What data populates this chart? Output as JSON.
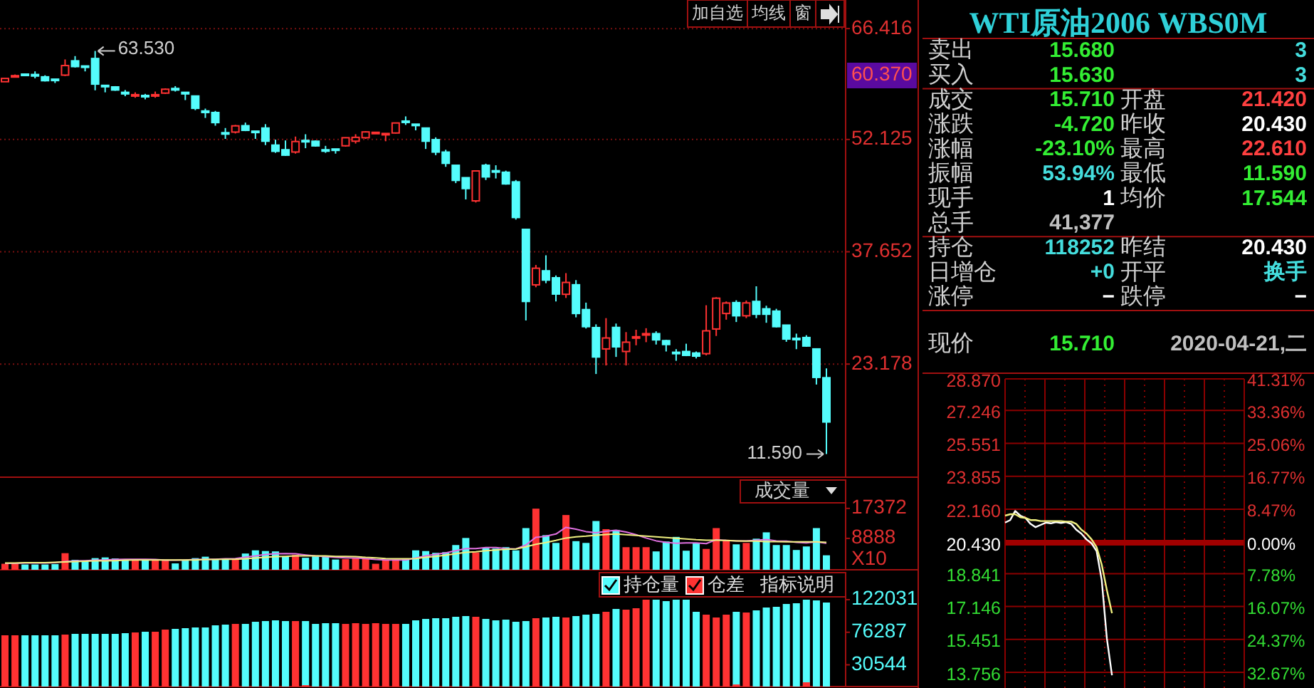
{
  "chart_data": [
    {
      "type": "candlestick",
      "categories": [
        null,
        null,
        null,
        null,
        null,
        null,
        null,
        null,
        null,
        null,
        null,
        null,
        null,
        null,
        null,
        null,
        null,
        null,
        null,
        null,
        null,
        null,
        null,
        null,
        null,
        null,
        null,
        null,
        null,
        null,
        null,
        null,
        null,
        null,
        null,
        null,
        null,
        null,
        null,
        null,
        null,
        null,
        null,
        null,
        null,
        null,
        null,
        null,
        null,
        null,
        null,
        null,
        null,
        null,
        null,
        null,
        null,
        null,
        null,
        null,
        null,
        null,
        null,
        null,
        null,
        null,
        null,
        null,
        null,
        null,
        null,
        null,
        null,
        null,
        null,
        null,
        null,
        null,
        null,
        null,
        null,
        null,
        null
      ],
      "ohlc": [
        [
          59.57,
          59.99,
          59.57,
          59.99
        ],
        [
          60.3,
          60.5,
          60.1,
          60.35
        ],
        [
          60.55,
          60.6,
          60.4,
          60.5
        ],
        [
          60.5,
          60.9,
          60.0,
          60.3
        ],
        [
          60.2,
          60.4,
          59.6,
          59.7
        ],
        [
          59.9,
          59.9,
          59.4,
          59.85
        ],
        [
          60.42,
          62.44,
          60.3,
          61.65
        ],
        [
          62.26,
          62.87,
          61.4,
          61.52
        ],
        [
          61.6,
          61.6,
          60.9,
          61.5
        ],
        [
          62.56,
          63.53,
          58.46,
          59.26
        ],
        [
          59.1,
          59.1,
          58.2,
          59.0
        ],
        [
          58.9,
          59.0,
          58.4,
          58.5
        ],
        [
          58.2,
          58.5,
          57.7,
          58.0
        ],
        [
          57.8,
          58.2,
          57.5,
          57.9
        ],
        [
          57.8,
          58.0,
          57.3,
          57.7
        ],
        [
          57.8,
          58.3,
          57.5,
          57.9
        ],
        [
          58.1,
          58.7,
          58.0,
          58.6
        ],
        [
          58.7,
          59.0,
          58.3,
          58.5
        ],
        [
          58.2,
          58.2,
          57.2,
          58.0
        ],
        [
          57.73,
          57.8,
          55.9,
          56.14
        ],
        [
          55.8,
          56.1,
          54.9,
          55.6
        ],
        [
          55.6,
          55.8,
          53.9,
          54.3
        ],
        [
          53.0,
          53.6,
          52.2,
          52.9
        ],
        [
          53.08,
          54.0,
          52.9,
          53.88
        ],
        [
          53.9,
          54.3,
          53.2,
          53.3
        ],
        [
          53.2,
          53.2,
          52.2,
          53.1
        ],
        [
          53.6,
          54.1,
          51.4,
          51.9
        ],
        [
          51.4,
          52.1,
          50.4,
          50.6
        ],
        [
          50.8,
          52.0,
          50.0,
          50.1
        ],
        [
          50.51,
          52.5,
          50.3,
          51.86
        ],
        [
          52.0,
          52.8,
          51.0,
          51.9
        ],
        [
          51.9,
          52.0,
          51.2,
          51.3
        ],
        [
          50.8,
          51.3,
          50.4,
          50.7
        ],
        [
          50.9,
          50.9,
          50.3,
          50.85
        ],
        [
          51.31,
          52.4,
          51.2,
          52.35
        ],
        [
          51.9,
          52.8,
          51.6,
          52.4
        ],
        [
          52.35,
          53.2,
          52.2,
          53.1
        ],
        [
          53.0,
          53.05,
          52.9,
          53.05
        ],
        [
          52.8,
          52.9,
          51.9,
          52.9
        ],
        [
          52.96,
          54.3,
          52.9,
          54.25
        ],
        [
          54.5,
          55.1,
          54.0,
          54.4
        ],
        [
          54.1,
          54.1,
          53.3,
          54.0
        ],
        [
          53.6,
          53.6,
          50.9,
          51.9
        ],
        [
          52.1,
          52.4,
          50.1,
          50.5
        ],
        [
          50.5,
          50.8,
          48.6,
          49.05
        ],
        [
          48.8,
          48.8,
          46.5,
          46.85
        ],
        [
          47.2,
          47.2,
          44.4,
          45.8
        ],
        [
          44.21,
          48.1,
          44.0,
          48.07
        ],
        [
          48.8,
          49.0,
          46.9,
          47.3
        ],
        [
          48.1,
          48.8,
          47.1,
          48.0
        ],
        [
          47.9,
          48.1,
          46.3,
          46.4
        ],
        [
          46.66,
          46.9,
          41.8,
          42.07
        ],
        [
          40.54,
          40.6,
          28.8,
          31.25
        ],
        [
          33.39,
          35.95,
          33.08,
          35.53
        ],
        [
          35.2,
          37.2,
          33.6,
          34.0
        ],
        [
          34.3,
          34.6,
          31.25,
          32.2
        ],
        [
          32.17,
          34.9,
          31.7,
          33.7
        ],
        [
          33.4,
          34.0,
          29.2,
          29.7
        ],
        [
          30.2,
          31.1,
          27.76,
          28.0
        ],
        [
          27.88,
          28.3,
          21.9,
          24.09
        ],
        [
          25.13,
          29.1,
          23.0,
          26.54
        ],
        [
          27.9,
          28.4,
          24.1,
          25.4
        ],
        [
          24.8,
          27.3,
          23.0,
          26.0
        ],
        [
          26.6,
          27.6,
          25.6,
          26.7
        ],
        [
          27.0,
          27.8,
          26.0,
          27.1
        ],
        [
          27.1,
          27.4,
          25.7,
          26.3
        ],
        [
          26.2,
          26.3,
          24.8,
          25.7
        ],
        [
          24.7,
          25.1,
          23.6,
          24.6
        ],
        [
          24.8,
          25.8,
          24.2,
          24.3
        ],
        [
          24.6,
          24.8,
          23.9,
          24.2
        ],
        [
          24.52,
          30.76,
          24.3,
          27.46
        ],
        [
          27.7,
          31.8,
          26.8,
          31.67
        ],
        [
          29.7,
          31.25,
          28.9,
          31.05
        ],
        [
          31.1,
          31.4,
          28.6,
          29.4
        ],
        [
          29.4,
          31.37,
          29.1,
          31.06
        ],
        [
          31.25,
          33.2,
          29.1,
          29.6
        ],
        [
          30.3,
          30.7,
          28.5,
          29.6
        ],
        [
          30.0,
          30.3,
          27.9,
          28.0
        ],
        [
          28.2,
          28.2,
          26.05,
          26.4
        ],
        [
          26.5,
          27.1,
          25.1,
          26.4
        ],
        [
          26.6,
          26.9,
          25.4,
          25.5
        ],
        [
          25.13,
          25.2,
          20.54,
          21.46
        ],
        [
          21.42,
          22.61,
          11.59,
          15.71
        ]
      ],
      "ylim": [
        8.6,
        70.1
      ],
      "yticks": [
        66.416,
        52.125,
        37.652,
        23.178
      ],
      "grid": "y",
      "annotations": [
        "加自选",
        "均线",
        "窗",
        "60.370",
        "63.530",
        "11.590"
      ]
    },
    {
      "type": "bar",
      "title": "成交量",
      "ylabel": "X10",
      "categories": [
        null,
        null,
        null,
        null,
        null,
        null,
        null,
        null,
        null,
        null,
        null,
        null,
        null,
        null,
        null,
        null,
        null,
        null,
        null,
        null,
        null,
        null,
        null,
        null,
        null,
        null,
        null,
        null,
        null,
        null,
        null,
        null,
        null,
        null,
        null,
        null,
        null,
        null,
        null,
        null,
        null,
        null,
        null,
        null,
        null,
        null,
        null,
        null,
        null,
        null,
        null,
        null,
        null,
        null,
        null,
        null,
        null,
        null,
        null,
        null,
        null,
        null,
        null,
        null,
        null,
        null,
        null,
        null,
        null,
        null,
        null,
        null,
        null,
        null,
        null,
        null,
        null,
        null,
        null,
        null,
        null,
        null,
        null
      ],
      "ylim": [
        0,
        25400
      ],
      "yticks": [
        17372,
        8888
      ],
      "series": [
        {
          "type": "bar",
          "values": [
            1700,
            1700,
            1500,
            1500,
            1500,
            1600,
            4700,
            2800,
            2600,
            3300,
            3500,
            3200,
            3000,
            3000,
            2800,
            3000,
            2900,
            1800,
            2700,
            3300,
            3700,
            2900,
            2900,
            3000,
            4600,
            5500,
            5300,
            5200,
            3800,
            4200,
            3400,
            3800,
            3700,
            2900,
            3000,
            3200,
            3200,
            1700,
            2700,
            2900,
            3000,
            5500,
            5300,
            4800,
            5000,
            7000,
            9000,
            4900,
            6200,
            6000,
            6400,
            5500,
            11800,
            17300,
            9800,
            7600,
            15500,
            8100,
            7600,
            13800,
            11500,
            11300,
            6400,
            6400,
            6400,
            5200,
            8000,
            9300,
            5400,
            7600,
            5900,
            11800,
            8500,
            7200,
            7600,
            8800,
            10600,
            7000,
            7000,
            5600,
            6600,
            11800,
            4100
          ],
          "colors": [
            "#ff3232",
            "#ff3232",
            "#54fcfc",
            "#54fcfc",
            "#54fcfc",
            "#54fcfc",
            "#ff3232",
            "#54fcfc",
            "#54fcfc",
            "#54fcfc",
            "#54fcfc",
            "#54fcfc",
            "#54fcfc",
            "#ff3232",
            "#54fcfc",
            "#ff3232",
            "#ff3232",
            "#54fcfc",
            "#54fcfc",
            "#54fcfc",
            "#54fcfc",
            "#54fcfc",
            "#54fcfc",
            "#ff3232",
            "#54fcfc",
            "#54fcfc",
            "#54fcfc",
            "#54fcfc",
            "#54fcfc",
            "#ff3232",
            "#54fcfc",
            "#54fcfc",
            "#54fcfc",
            "#54fcfc",
            "#ff3232",
            "#ff3232",
            "#ff3232",
            "#ff3232",
            "#ff3232",
            "#ff3232",
            "#54fcfc",
            "#54fcfc",
            "#54fcfc",
            "#54fcfc",
            "#54fcfc",
            "#54fcfc",
            "#54fcfc",
            "#ff3232",
            "#54fcfc",
            "#54fcfc",
            "#54fcfc",
            "#54fcfc",
            "#54fcfc",
            "#ff3232",
            "#54fcfc",
            "#54fcfc",
            "#ff3232",
            "#54fcfc",
            "#54fcfc",
            "#54fcfc",
            "#ff3232",
            "#54fcfc",
            "#ff3232",
            "#ff3232",
            "#ff3232",
            "#54fcfc",
            "#54fcfc",
            "#54fcfc",
            "#54fcfc",
            "#54fcfc",
            "#ff3232",
            "#ff3232",
            "#ff3232",
            "#54fcfc",
            "#ff3232",
            "#54fcfc",
            "#54fcfc",
            "#54fcfc",
            "#54fcfc",
            "#54fcfc",
            "#54fcfc",
            "#54fcfc",
            "#54fcfc"
          ]
        },
        {
          "type": "line",
          "color": "#e070e0",
          "values": [
            1800,
            1800,
            1900,
            1900,
            1900,
            2000,
            2300,
            2500,
            2600,
            2700,
            2800,
            2900,
            3000,
            3000,
            3000,
            2900,
            2700,
            2700,
            2800,
            2900,
            2900,
            3000,
            3100,
            3200,
            3600,
            3900,
            4300,
            4500,
            4600,
            4500,
            4200,
            3900,
            3700,
            3500,
            3400,
            3300,
            3200,
            2900,
            2800,
            2800,
            2800,
            3300,
            3900,
            4400,
            4800,
            5400,
            6000,
            6000,
            6300,
            6300,
            6000,
            5900,
            7000,
            9200,
            9500,
            10100,
            12000,
            11500,
            10800,
            10500,
            10900,
            11200,
            10700,
            9900,
            9000,
            8200,
            7800,
            7500,
            7600,
            7600,
            7400,
            8500,
            8300,
            8200,
            8200,
            8400,
            8600,
            8200,
            8100,
            7800,
            7600,
            7900,
            7500
          ]
        },
        {
          "type": "line",
          "color": "#f0f080",
          "values": [
            1900,
            1900,
            2000,
            2000,
            2000,
            2100,
            2200,
            2300,
            2400,
            2500,
            2500,
            2600,
            2700,
            2800,
            2800,
            2800,
            2800,
            2800,
            2800,
            2800,
            2900,
            2900,
            3000,
            3000,
            3100,
            3300,
            3500,
            3700,
            3800,
            3900,
            3900,
            3900,
            3900,
            3800,
            3800,
            3700,
            3500,
            3400,
            3200,
            3100,
            3100,
            3200,
            3500,
            3800,
            4100,
            4500,
            4900,
            5100,
            5400,
            5600,
            5800,
            5900,
            6500,
            7200,
            7700,
            8300,
            9000,
            9300,
            9500,
            9800,
            10000,
            10100,
            9900,
            9700,
            9500,
            9300,
            9100,
            8900,
            8700,
            8500,
            8400,
            8400,
            8300,
            8200,
            8100,
            8100,
            8000,
            8000,
            7900,
            7900,
            7900,
            7900,
            7800
          ]
        }
      ]
    },
    {
      "type": "bar",
      "categories": [
        null,
        null,
        null,
        null,
        null,
        null,
        null,
        null,
        null,
        null,
        null,
        null,
        null,
        null,
        null,
        null,
        null,
        null,
        null,
        null,
        null,
        null,
        null,
        null,
        null,
        null,
        null,
        null,
        null,
        null,
        null,
        null,
        null,
        null,
        null,
        null,
        null,
        null,
        null,
        null,
        null,
        null,
        null,
        null,
        null,
        null,
        null,
        null,
        null,
        null,
        null,
        null,
        null,
        null,
        null,
        null,
        null,
        null,
        null,
        null,
        null,
        null,
        null,
        null,
        null,
        null,
        null,
        null,
        null,
        null,
        null,
        null,
        null,
        null,
        null,
        null,
        null,
        null,
        null,
        null,
        null,
        null,
        null
      ],
      "ylim": [
        0,
        160000
      ],
      "yticks": [
        122031,
        76287,
        30544
      ],
      "legend": "top right",
      "annotations": [
        "指标说明"
      ],
      "series": [
        {
          "type": "bar",
          "name": "持仓量",
          "color": "#54fcfc",
          "values": [
            72000,
            72000,
            72000,
            72000,
            72000,
            72000,
            73000,
            74000,
            74000,
            74000,
            74000,
            74000,
            75000,
            76000,
            77000,
            77000,
            80000,
            81000,
            82000,
            83000,
            83000,
            86000,
            87000,
            88000,
            88000,
            91000,
            92000,
            93000,
            92000,
            92000,
            92000,
            88000,
            89000,
            89000,
            88000,
            89000,
            88000,
            89000,
            88000,
            88000,
            88000,
            93000,
            95000,
            96000,
            96000,
            98000,
            99000,
            98000,
            95000,
            93000,
            94000,
            91000,
            92000,
            96000,
            97000,
            98000,
            97000,
            99000,
            101000,
            102000,
            105000,
            109000,
            108000,
            110000,
            122000,
            122000,
            120000,
            122000,
            122000,
            105000,
            101000,
            97000,
            101000,
            105000,
            104000,
            107000,
            111000,
            112000,
            116000,
            117000,
            122000,
            121000,
            118000
          ],
          "colors": [
            "#ff3232",
            "#ff3232",
            "#54fcfc",
            "#54fcfc",
            "#54fcfc",
            "#54fcfc",
            "#ff3232",
            "#54fcfc",
            "#54fcfc",
            "#54fcfc",
            "#54fcfc",
            "#54fcfc",
            "#54fcfc",
            "#ff3232",
            "#54fcfc",
            "#ff3232",
            "#ff3232",
            "#54fcfc",
            "#54fcfc",
            "#54fcfc",
            "#54fcfc",
            "#54fcfc",
            "#54fcfc",
            "#ff3232",
            "#54fcfc",
            "#54fcfc",
            "#54fcfc",
            "#54fcfc",
            "#54fcfc",
            "#ff3232",
            "#54fcfc",
            "#54fcfc",
            "#54fcfc",
            "#54fcfc",
            "#ff3232",
            "#ff3232",
            "#ff3232",
            "#ff3232",
            "#ff3232",
            "#ff3232",
            "#54fcfc",
            "#54fcfc",
            "#54fcfc",
            "#54fcfc",
            "#54fcfc",
            "#54fcfc",
            "#54fcfc",
            "#ff3232",
            "#54fcfc",
            "#54fcfc",
            "#54fcfc",
            "#54fcfc",
            "#54fcfc",
            "#ff3232",
            "#54fcfc",
            "#54fcfc",
            "#ff3232",
            "#54fcfc",
            "#54fcfc",
            "#54fcfc",
            "#ff3232",
            "#54fcfc",
            "#ff3232",
            "#ff3232",
            "#ff3232",
            "#54fcfc",
            "#54fcfc",
            "#54fcfc",
            "#54fcfc",
            "#54fcfc",
            "#ff3232",
            "#ff3232",
            "#ff3232",
            "#54fcfc",
            "#ff3232",
            "#54fcfc",
            "#54fcfc",
            "#54fcfc",
            "#54fcfc",
            "#54fcfc",
            "#54fcfc",
            "#54fcfc",
            "#54fcfc"
          ]
        },
        {
          "type": "bar",
          "name": "仓差",
          "color": "#ff3232",
          "values": [
            null,
            null,
            null,
            null,
            null,
            null,
            null,
            null,
            null,
            null,
            null,
            null,
            null,
            null,
            null,
            null,
            null,
            null,
            null,
            null,
            null,
            null,
            null,
            null,
            null,
            null,
            null,
            null,
            null,
            null,
            2000,
            null,
            null,
            null,
            null,
            null,
            null,
            null,
            null,
            null,
            null,
            null,
            null,
            null,
            null,
            null,
            null,
            null,
            null,
            null,
            null,
            null,
            null,
            null,
            null,
            null,
            null,
            null,
            null,
            null,
            null,
            null,
            null,
            null,
            null,
            null,
            null,
            null,
            null,
            null,
            null,
            null,
            null,
            3000,
            null,
            null,
            null,
            null,
            null,
            null,
            6000,
            null,
            null
          ]
        }
      ]
    },
    {
      "type": "other",
      "title": "WTI原油2006 WBS0M",
      "annotations": [
        "卖出",
        "15.680",
        null,
        "3",
        "买入",
        "15.630",
        null,
        "3",
        "成交",
        "15.710",
        "开盘",
        "21.420",
        "涨跌",
        "-4.720",
        "昨收",
        "20.430",
        "涨幅",
        "-23.10%",
        "最高",
        "22.610",
        "振幅",
        "53.94%",
        "最低",
        "11.590",
        "现手",
        "1",
        "均价",
        "17.544",
        "总手",
        "41,377",
        null,
        null,
        "持仓",
        "118252",
        "昨结",
        "20.430",
        "日增仓",
        "+0",
        "开平",
        "换手",
        "涨停",
        "−",
        "跌停",
        "−",
        "现价",
        "15.710",
        null,
        "2020-04-21,二"
      ],
      "colors": [
        "#d0d0d0",
        "#33ee33",
        null,
        "#44dddd",
        "#d0d0d0",
        "#33ee33",
        null,
        "#44dddd",
        "#d0d0d0",
        "#33ee33",
        "#d0d0d0",
        "#ff4040",
        "#d0d0d0",
        "#33ee33",
        "#d0d0d0",
        "#ffffff",
        "#d0d0d0",
        "#33ee33",
        "#d0d0d0",
        "#ff4040",
        "#d0d0d0",
        "#44dddd",
        "#d0d0d0",
        "#33ee33",
        "#d0d0d0",
        "#ffffff",
        "#d0d0d0",
        "#33ee33",
        "#d0d0d0",
        "#c0c0c0",
        null,
        null,
        "#d0d0d0",
        "#44dddd",
        "#d0d0d0",
        "#ffffff",
        "#d0d0d0",
        "#44dddd",
        "#d0d0d0",
        "#44dddd",
        "#d0d0d0",
        "#ffffff",
        "#d0d0d0",
        "#ffffff",
        "#d0d0d0",
        "#33ee33",
        null,
        "#c0c0c0"
      ]
    },
    {
      "type": "line",
      "categories": [
        null,
        null,
        null,
        null,
        null,
        null,
        null,
        null,
        null,
        null,
        null,
        null,
        null,
        null,
        null,
        null,
        null,
        null,
        null,
        null,
        null,
        null,
        null,
        null,
        null,
        null,
        null,
        null,
        null,
        null,
        null,
        null,
        null,
        null,
        null,
        null,
        null,
        null,
        null,
        null,
        null,
        null,
        null,
        null,
        null,
        null,
        null,
        null
      ],
      "ylim": [
        12.95,
        28.87
      ],
      "yticks": [
        {
          "value": 28.87,
          "label": "28.870"
        },
        27.246,
        25.551,
        23.855,
        {
          "value": 22.16,
          "label": "22.160"
        },
        {
          "value": 20.43,
          "label": "20.430"
        },
        18.841,
        17.146,
        15.451,
        13.756
      ],
      "y2lim": [
        -36.61,
        41.31
      ],
      "y2ticks": [
        {
          "value": 41.31,
          "label": "41.31%"
        },
        {
          "value": 33.36,
          "label": "33.36%"
        },
        {
          "value": 25.06,
          "label": "25.06%"
        },
        {
          "value": 16.77,
          "label": "16.77%"
        },
        {
          "value": 8.47,
          "label": "8.47%"
        },
        {
          "value": 0,
          "label": "0.00%"
        },
        {
          "value": -7.78,
          "label": "7.78%"
        },
        {
          "value": -16.07,
          "label": "16.07%"
        },
        {
          "value": -24.37,
          "label": "24.37%"
        },
        {
          "value": -32.67,
          "label": "32.67%"
        }
      ],
      "ref_lines": [
        {
          "axis": "y",
          "value": 20.43,
          "color": "#a00000"
        }
      ],
      "grid": true,
      "series": [
        {
          "color": "#ffffff",
          "values": [
            21.47,
            21.6,
            22.07,
            21.83,
            21.71,
            21.4,
            21.23,
            21.35,
            21.47,
            21.43,
            21.5,
            21.45,
            21.5,
            21.4,
            21.1,
            20.9,
            20.6,
            20.4,
            20.0,
            18.5,
            15.5,
            13.6,
            null,
            null,
            null,
            null,
            null,
            null,
            null,
            null,
            null,
            null,
            null,
            null,
            null,
            null,
            null,
            null,
            null,
            null,
            null,
            null,
            null,
            null,
            null,
            null,
            null,
            null
          ]
        },
        {
          "color": "#f0f080",
          "values": [
            21.83,
            21.9,
            21.9,
            21.75,
            21.71,
            21.6,
            21.6,
            21.55,
            21.55,
            21.55,
            21.55,
            21.55,
            21.52,
            21.52,
            21.4,
            21.1,
            20.9,
            20.6,
            20.2,
            19.3,
            18.0,
            16.8,
            null,
            null,
            null,
            null,
            null,
            null,
            null,
            null,
            null,
            null,
            null,
            null,
            null,
            null,
            null,
            null,
            null,
            null,
            null,
            null,
            null,
            null,
            null,
            null,
            null,
            null
          ]
        }
      ]
    }
  ]
}
